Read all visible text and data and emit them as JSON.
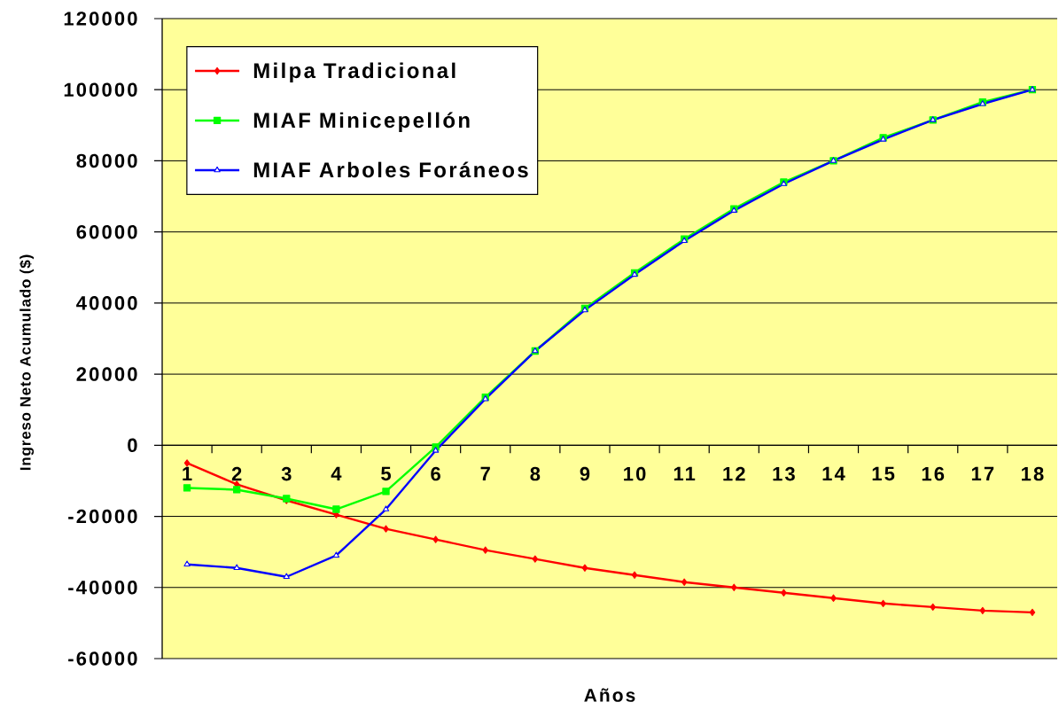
{
  "chart_data": {
    "type": "line",
    "xlabel": "Años",
    "ylabel": "Ingreso Neto Acumulado ($)",
    "categories": [
      "1",
      "2",
      "3",
      "4",
      "5",
      "6",
      "7",
      "8",
      "9",
      "10",
      "11",
      "12",
      "13",
      "14",
      "15",
      "16",
      "17",
      "18"
    ],
    "series": [
      {
        "name": "Milpa Tradicional",
        "color": "#ff0000",
        "marker": "diamond",
        "values": [
          -5000,
          -11000,
          -15500,
          -19500,
          -23500,
          -26500,
          -29500,
          -32000,
          -34500,
          -36500,
          -38500,
          -40000,
          -41500,
          -43000,
          -44500,
          -45500,
          -46500,
          -47000
        ]
      },
      {
        "name": "MIAF Minicepellón",
        "color": "#00ff00",
        "marker": "square",
        "values": [
          -12000,
          -12500,
          -15000,
          -18000,
          -13000,
          -500,
          13500,
          26500,
          38500,
          48500,
          58000,
          66500,
          74000,
          80000,
          86500,
          91500,
          96500,
          100000
        ]
      },
      {
        "name": "MIAF Arboles Foráneos",
        "color": "#0000ff",
        "marker": "triangle",
        "values": [
          -33500,
          -34500,
          -37000,
          -31000,
          -18000,
          -1500,
          13000,
          26500,
          38000,
          48000,
          57500,
          66000,
          73500,
          80000,
          86000,
          91500,
          96000,
          100000
        ]
      }
    ],
    "ylim": [
      -60000,
      120000
    ],
    "yticks": [
      -60000,
      -40000,
      -20000,
      0,
      20000,
      40000,
      60000,
      80000,
      100000,
      120000
    ],
    "grid": "y",
    "legend": "top left",
    "line_style": "solid"
  }
}
